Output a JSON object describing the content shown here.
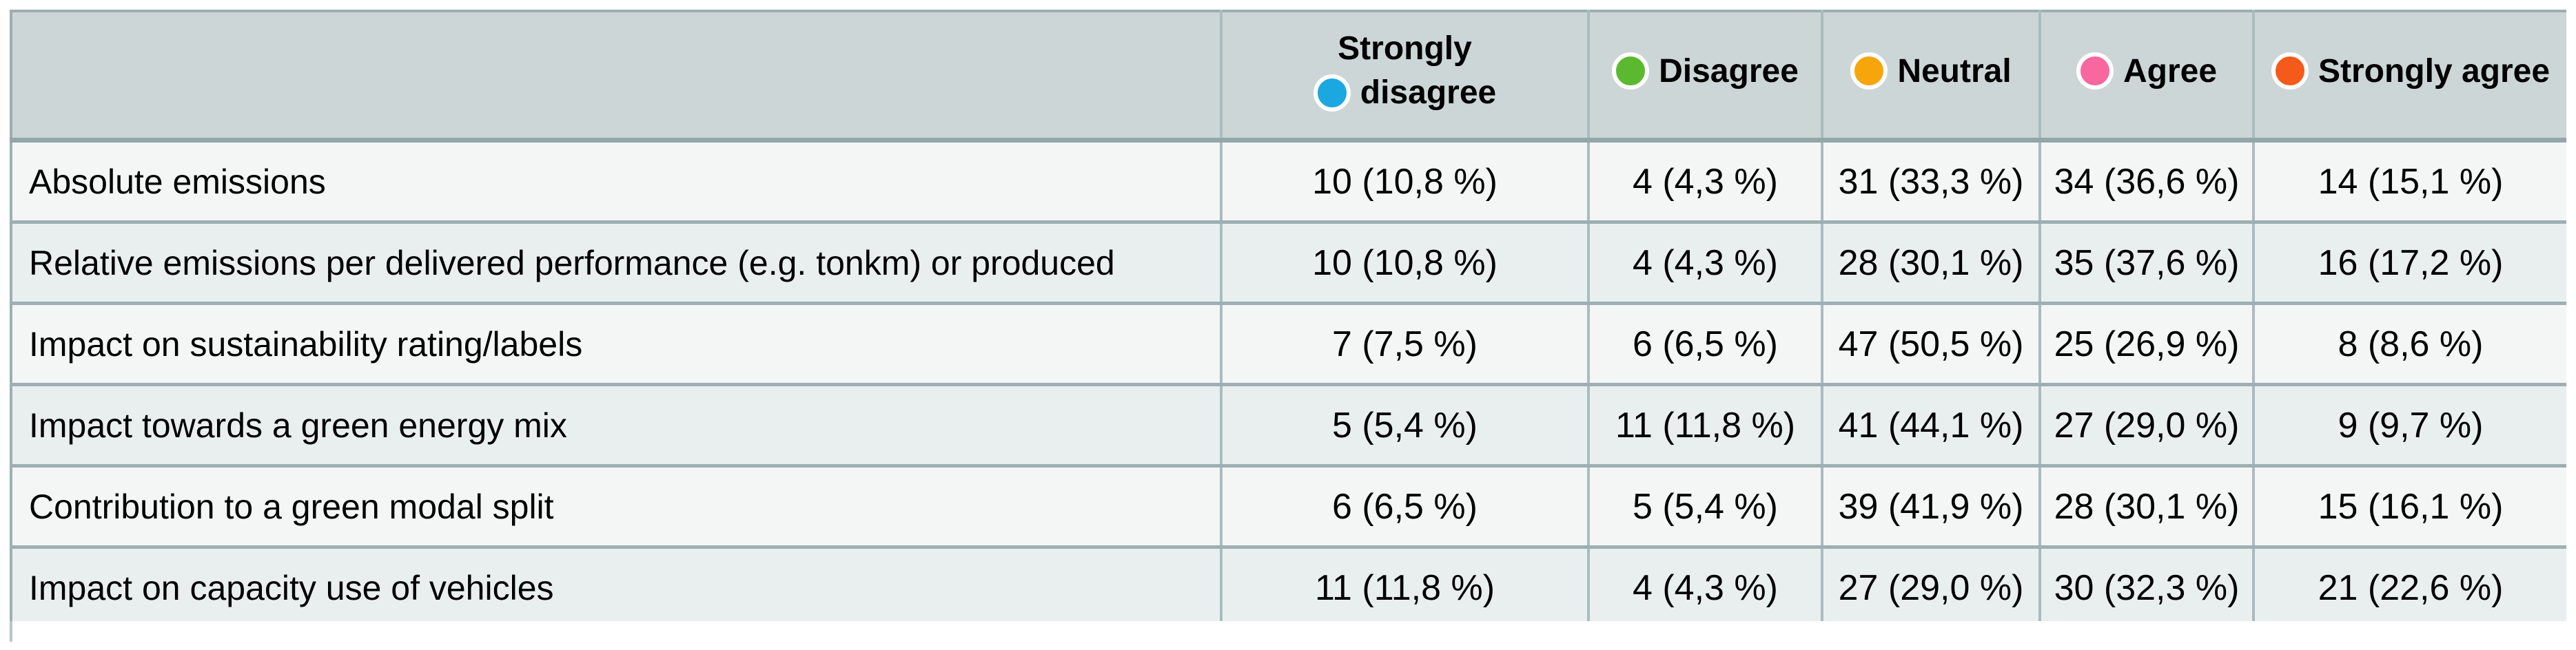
{
  "table": {
    "columns": [
      {
        "label": "Strongly disagree",
        "line1": "Strongly",
        "line2": "disagree",
        "marker_color": "#1ba8e0"
      },
      {
        "label": "Disagree",
        "marker_color": "#5bb92f"
      },
      {
        "label": "Neutral",
        "marker_color": "#f6a60a"
      },
      {
        "label": "Agree",
        "marker_color": "#f9679f"
      },
      {
        "label": "Strongly agree",
        "marker_color": "#f55a1b"
      }
    ],
    "rows": [
      {
        "criteria": "Absolute emissions",
        "values": [
          "10 (10,8 %)",
          "4 (4,3 %)",
          "31 (33,3 %)",
          "34 (36,6 %)",
          "14 (15,1 %)"
        ]
      },
      {
        "criteria": "Relative emissions per delivered performance (e.g. tonkm) or produced",
        "values": [
          "10 (10,8 %)",
          "4 (4,3 %)",
          "28 (30,1 %)",
          "35 (37,6 %)",
          "16 (17,2 %)"
        ]
      },
      {
        "criteria": "Impact on sustainability rating/labels",
        "values": [
          "7 (7,5 %)",
          "6 (6,5 %)",
          "47 (50,5 %)",
          "25 (26,9 %)",
          "8 (8,6 %)"
        ]
      },
      {
        "criteria": "Impact towards a green energy mix",
        "values": [
          "5 (5,4 %)",
          "11 (11,8 %)",
          "41 (44,1 %)",
          "27 (29,0 %)",
          "9 (9,7 %)"
        ]
      },
      {
        "criteria": "Contribution to a green modal split",
        "values": [
          "6 (6,5 %)",
          "5 (5,4 %)",
          "39 (41,9 %)",
          "28 (30,1 %)",
          "15 (16,1 %)"
        ]
      },
      {
        "criteria": "Impact on capacity use of vehicles",
        "values": [
          "11 (11,8 %)",
          "4 (4,3 %)",
          "27 (29,0 %)",
          "30 (32,3 %)",
          "21 (22,6 %)"
        ]
      }
    ]
  },
  "colors": {
    "header_bg": "#ccd6d6",
    "row_odd_bg": "#f4f6f6",
    "row_even_bg": "#e9efef",
    "border_horizontal": "#9dafb2",
    "border_vertical": "#a9bcc0",
    "text": "#000000"
  },
  "chart_data": {
    "type": "table",
    "categories": [
      "Absolute emissions",
      "Relative emissions per delivered performance (e.g. tonkm) or produced",
      "Impact on sustainability rating/labels",
      "Impact towards a green energy mix",
      "Contribution to a green modal split",
      "Impact on capacity use of vehicles"
    ],
    "columns": [
      "Strongly disagree",
      "Disagree",
      "Neutral",
      "Agree",
      "Strongly agree"
    ],
    "legend_colors": [
      "#1ba8e0",
      "#5bb92f",
      "#f6a60a",
      "#f9679f",
      "#f55a1b"
    ],
    "counts": [
      [
        10,
        4,
        31,
        34,
        14
      ],
      [
        10,
        4,
        28,
        35,
        16
      ],
      [
        7,
        6,
        47,
        25,
        8
      ],
      [
        5,
        11,
        41,
        27,
        9
      ],
      [
        6,
        5,
        39,
        28,
        15
      ],
      [
        11,
        4,
        27,
        30,
        21
      ]
    ],
    "percents": [
      [
        10.8,
        4.3,
        33.3,
        36.6,
        15.1
      ],
      [
        10.8,
        4.3,
        30.1,
        37.6,
        17.2
      ],
      [
        7.5,
        6.5,
        50.5,
        26.9,
        8.6
      ],
      [
        5.4,
        11.8,
        44.1,
        29.0,
        9.7
      ],
      [
        6.5,
        5.4,
        41.9,
        30.1,
        16.1
      ],
      [
        11.8,
        4.3,
        29.0,
        32.3,
        22.6
      ]
    ],
    "value_format": "count (percent %) with comma decimal separator",
    "legend_position": "in-header",
    "grid": true
  }
}
